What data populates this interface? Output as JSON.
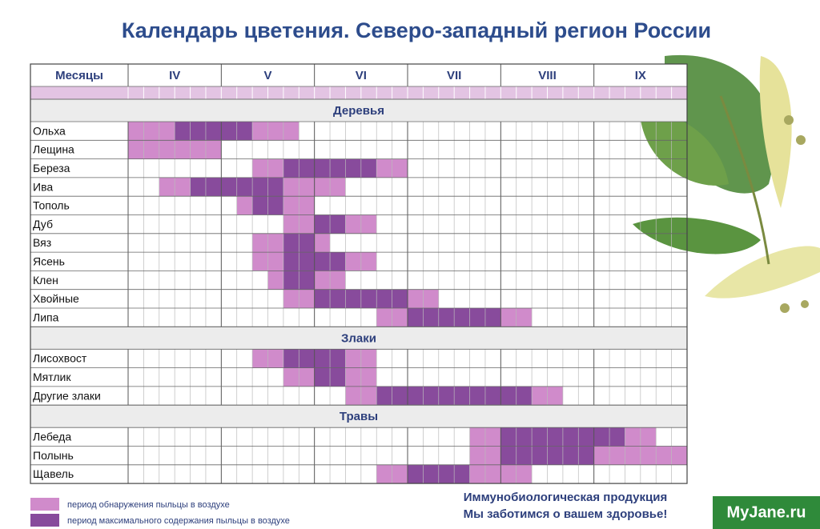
{
  "title": "Календарь цветения. Северо-западный регион России",
  "table": {
    "header": "Месяцы",
    "months": [
      "IV",
      "V",
      "VI",
      "VII",
      "VIII",
      "IX"
    ],
    "sections": [
      {
        "name": "Деревья",
        "rows": [
          {
            "name": "Ольха",
            "periods": [
              {
                "start": 0,
                "end": 3,
                "level": 0
              },
              {
                "start": 3,
                "end": 8,
                "level": 1
              },
              {
                "start": 8,
                "end": 11,
                "level": 0
              }
            ]
          },
          {
            "name": "Лещина",
            "periods": [
              {
                "start": 0,
                "end": 6,
                "level": 0
              }
            ]
          },
          {
            "name": "Береза",
            "periods": [
              {
                "start": 8,
                "end": 10,
                "level": 0
              },
              {
                "start": 10,
                "end": 16,
                "level": 1
              },
              {
                "start": 16,
                "end": 18,
                "level": 0
              }
            ]
          },
          {
            "name": "Ива",
            "periods": [
              {
                "start": 2,
                "end": 4,
                "level": 0
              },
              {
                "start": 4,
                "end": 10,
                "level": 1
              },
              {
                "start": 10,
                "end": 14,
                "level": 0
              }
            ]
          },
          {
            "name": "Тополь",
            "periods": [
              {
                "start": 7,
                "end": 8,
                "level": 0
              },
              {
                "start": 8,
                "end": 10,
                "level": 1
              },
              {
                "start": 10,
                "end": 12,
                "level": 0
              }
            ]
          },
          {
            "name": "Дуб",
            "periods": [
              {
                "start": 10,
                "end": 12,
                "level": 0
              },
              {
                "start": 12,
                "end": 14,
                "level": 1
              },
              {
                "start": 14,
                "end": 16,
                "level": 0
              }
            ]
          },
          {
            "name": "Вяз",
            "periods": [
              {
                "start": 8,
                "end": 10,
                "level": 0
              },
              {
                "start": 10,
                "end": 12,
                "level": 1
              },
              {
                "start": 12,
                "end": 13,
                "level": 0
              }
            ]
          },
          {
            "name": "Ясень",
            "periods": [
              {
                "start": 8,
                "end": 10,
                "level": 0
              },
              {
                "start": 10,
                "end": 14,
                "level": 1
              },
              {
                "start": 14,
                "end": 16,
                "level": 0
              }
            ]
          },
          {
            "name": "Клен",
            "periods": [
              {
                "start": 9,
                "end": 10,
                "level": 0
              },
              {
                "start": 10,
                "end": 12,
                "level": 1
              },
              {
                "start": 12,
                "end": 14,
                "level": 0
              }
            ]
          },
          {
            "name": "Хвойные",
            "periods": [
              {
                "start": 10,
                "end": 12,
                "level": 0
              },
              {
                "start": 12,
                "end": 18,
                "level": 1
              },
              {
                "start": 18,
                "end": 20,
                "level": 0
              }
            ]
          },
          {
            "name": "Липа",
            "periods": [
              {
                "start": 16,
                "end": 18,
                "level": 0
              },
              {
                "start": 18,
                "end": 24,
                "level": 1
              },
              {
                "start": 24,
                "end": 26,
                "level": 0
              }
            ]
          }
        ]
      },
      {
        "name": "Злаки",
        "rows": [
          {
            "name": "Лисохвост",
            "periods": [
              {
                "start": 8,
                "end": 10,
                "level": 0
              },
              {
                "start": 10,
                "end": 14,
                "level": 1
              },
              {
                "start": 14,
                "end": 16,
                "level": 0
              }
            ]
          },
          {
            "name": "Мятлик",
            "periods": [
              {
                "start": 10,
                "end": 12,
                "level": 0
              },
              {
                "start": 12,
                "end": 14,
                "level": 1
              },
              {
                "start": 14,
                "end": 16,
                "level": 0
              }
            ]
          },
          {
            "name": "Другие злаки",
            "periods": [
              {
                "start": 14,
                "end": 16,
                "level": 0
              },
              {
                "start": 16,
                "end": 26,
                "level": 1
              },
              {
                "start": 26,
                "end": 28,
                "level": 0
              }
            ]
          }
        ]
      },
      {
        "name": "Травы",
        "rows": [
          {
            "name": "Лебеда",
            "periods": [
              {
                "start": 22,
                "end": 24,
                "level": 0
              },
              {
                "start": 24,
                "end": 32,
                "level": 1
              },
              {
                "start": 32,
                "end": 34,
                "level": 0
              }
            ]
          },
          {
            "name": "Полынь",
            "periods": [
              {
                "start": 22,
                "end": 24,
                "level": 0
              },
              {
                "start": 24,
                "end": 30,
                "level": 1
              },
              {
                "start": 30,
                "end": 36,
                "level": 0
              }
            ]
          },
          {
            "name": "Щавель",
            "periods": [
              {
                "start": 16,
                "end": 18,
                "level": 0
              },
              {
                "start": 18,
                "end": 22,
                "level": 1
              },
              {
                "start": 22,
                "end": 26,
                "level": 0
              }
            ]
          }
        ]
      }
    ]
  },
  "legend": [
    {
      "label": "период обнаружения пыльцы в воздухе",
      "color": "#d08bcb"
    },
    {
      "label": "период максимального содержания пыльцы в воздухе",
      "color": "#884b9c"
    }
  ],
  "footer": [
    "Иммунобиологическая продукция",
    "Мы заботимся о вашем здоровье!"
  ],
  "watermark": "MyJane.ru"
}
